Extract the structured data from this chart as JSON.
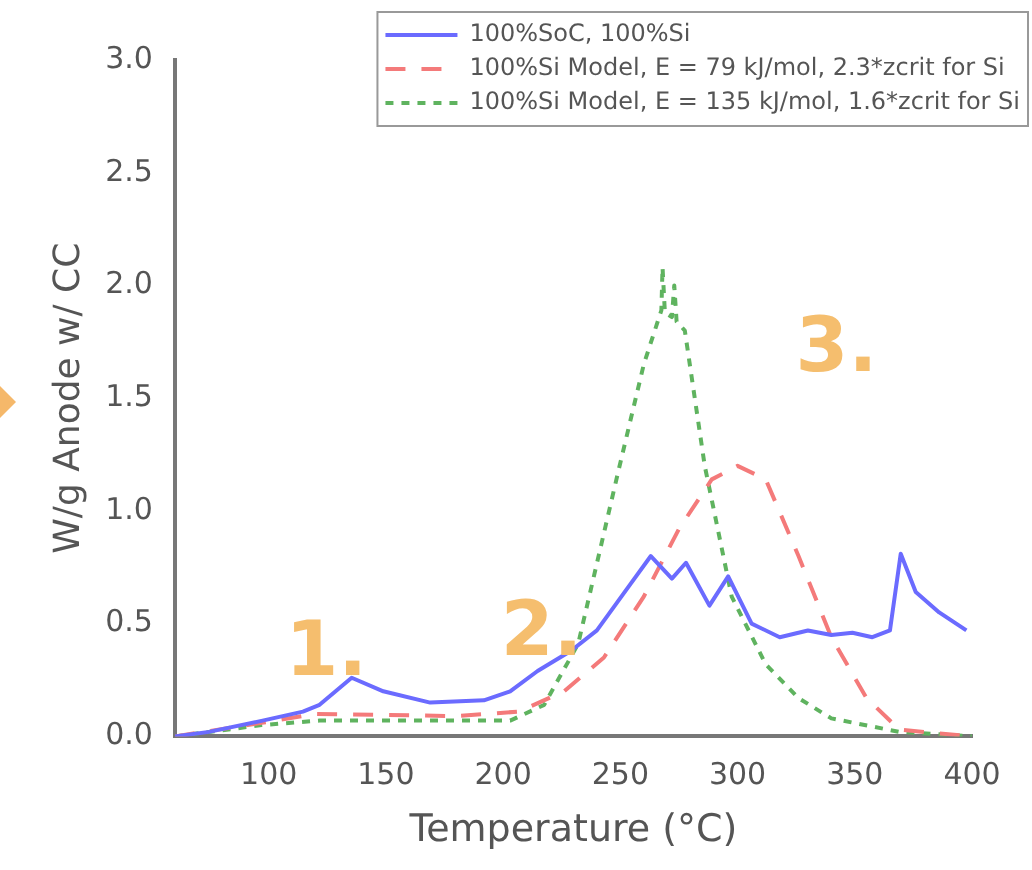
{
  "chart_data": {
    "type": "line",
    "xlabel": "Temperature (°C)",
    "ylabel": "W/g Anode w/ CC",
    "xlim": [
      60,
      400
    ],
    "xticks": [
      100,
      150,
      200,
      250,
      300,
      350,
      400
    ],
    "ylim": [
      0,
      3.0
    ],
    "yticks": [
      {
        "value": 0,
        "label": "0.0"
      },
      {
        "value": 0.5,
        "label": "0.5"
      },
      {
        "value": 1,
        "label": "1.0"
      },
      {
        "value": 1.5,
        "label": "1.5"
      },
      {
        "value": 2,
        "label": "2.0"
      },
      {
        "value": 2.5,
        "label": "2.5"
      },
      {
        "value": 3,
        "label": "3.0"
      }
    ],
    "grid": false,
    "legend": "top right",
    "marker": "none",
    "series": [
      {
        "name": "100%SoC, 100%Si",
        "color": "#6b6bff",
        "line_style": "solid",
        "x": [
          60,
          74.5,
          97.4,
          114.6,
          121.7,
          135.4,
          148.9,
          168.9,
          191.8,
          203,
          214.7,
          229,
          240,
          254.6,
          263,
          272,
          278,
          288,
          296,
          306,
          318,
          330,
          340,
          349,
          357.5,
          365,
          369.6,
          376,
          386,
          397.6
        ],
        "values": [
          0,
          0.02,
          0.07,
          0.11,
          0.14,
          0.26,
          0.2,
          0.15,
          0.16,
          0.2,
          0.29,
          0.38,
          0.47,
          0.68,
          0.8,
          0.7,
          0.77,
          0.58,
          0.71,
          0.5,
          0.44,
          0.47,
          0.45,
          0.46,
          0.44,
          0.47,
          0.81,
          0.64,
          0.55,
          0.47
        ]
      },
      {
        "name": "100%Si Model, E = 79 kJ/mol, 2.3*zcrit for Si",
        "color": "#f47a7a",
        "line_style": "dashed",
        "x": [
          60,
          97,
          120,
          180,
          206.7,
          226,
          243,
          260,
          275,
          289,
          300,
          312,
          326,
          340,
          355,
          369,
          400
        ],
        "values": [
          0,
          0.06,
          0.1,
          0.09,
          0.11,
          0.2,
          0.35,
          0.62,
          0.92,
          1.14,
          1.2,
          1.14,
          0.8,
          0.44,
          0.17,
          0.03,
          0
        ]
      },
      {
        "name": "100%Si Model, E = 135 kJ/mol, 1.6*zcrit for Si",
        "color": "#5fb35f",
        "line_style": "dotted",
        "x": [
          60,
          97,
          121.7,
          169,
          203,
          217.5,
          232,
          249,
          260,
          267.5,
          268,
          269,
          272,
          273,
          274,
          277.5,
          286,
          297.5,
          312,
          326,
          340,
          369,
          400
        ],
        "values": [
          0,
          0.05,
          0.07,
          0.07,
          0.07,
          0.14,
          0.41,
          1.17,
          1.65,
          1.89,
          2.08,
          1.88,
          1.86,
          2.0,
          1.84,
          1.8,
          1.2,
          0.62,
          0.32,
          0.17,
          0.08,
          0.02,
          0
        ]
      }
    ],
    "annotations": [
      "1.",
      "2.",
      "3."
    ]
  }
}
